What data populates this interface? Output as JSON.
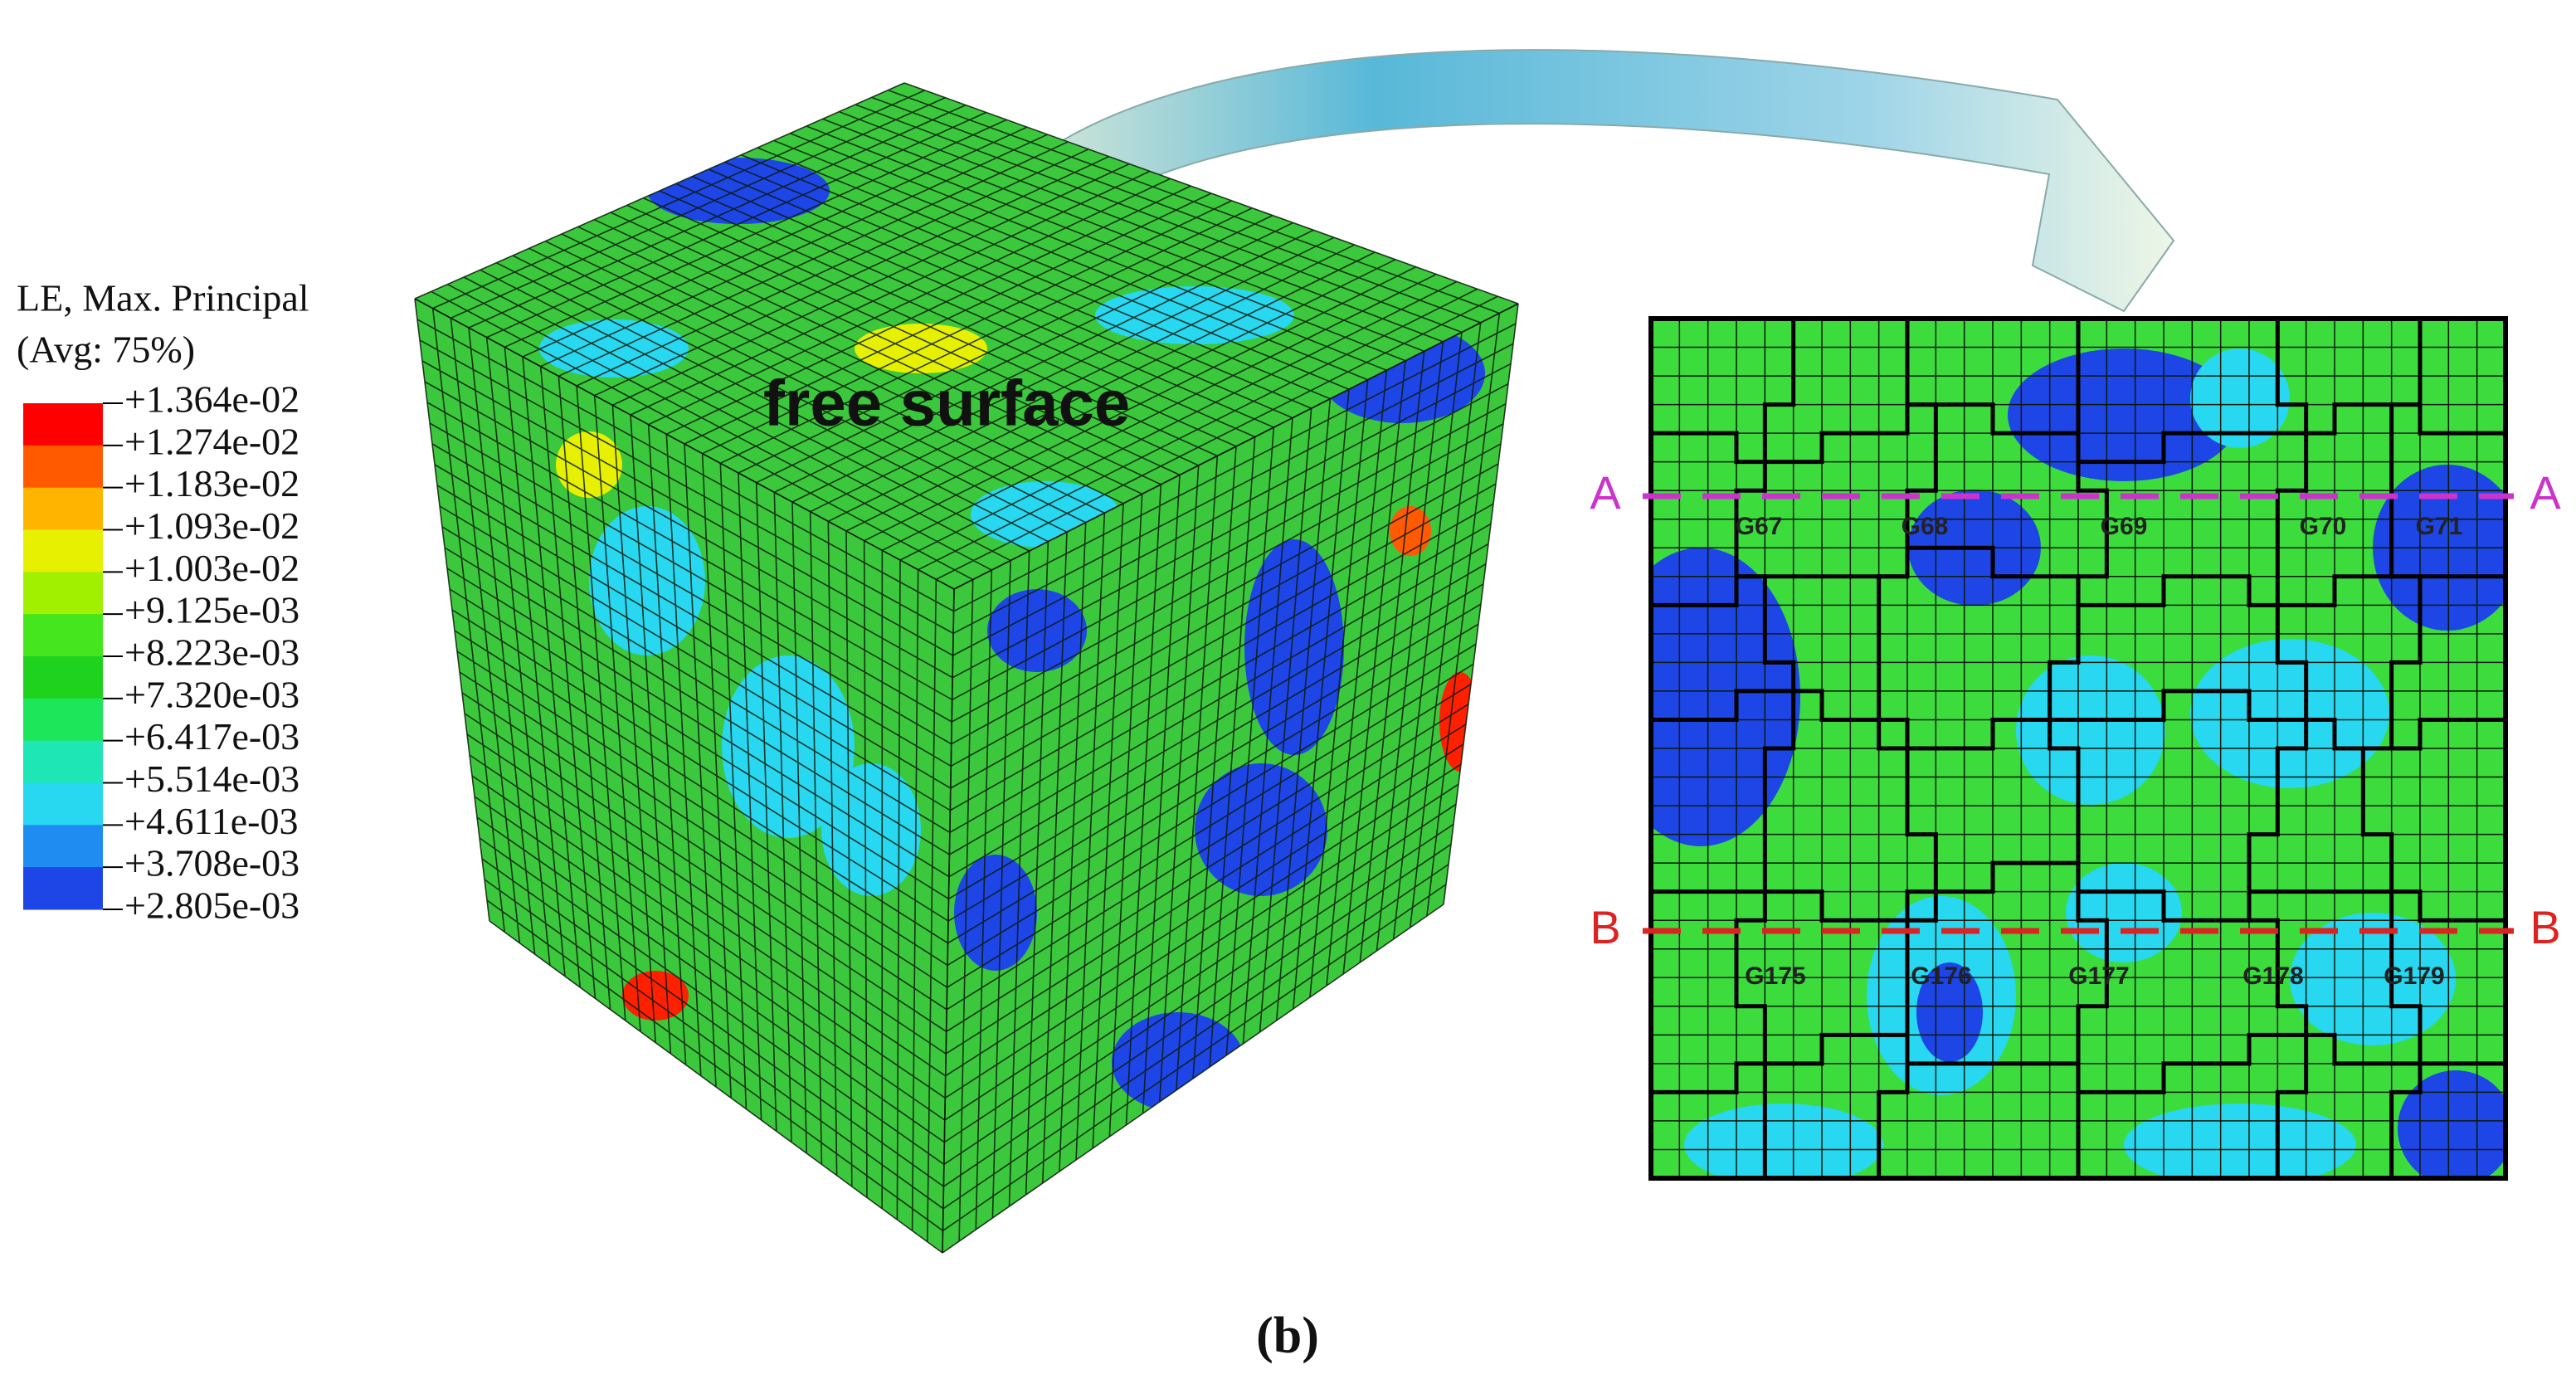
{
  "legend": {
    "title": "LE, Max. Principal",
    "subtitle": "(Avg: 75%)",
    "labels": [
      "+1.364e-02",
      "+1.274e-02",
      "+1.183e-02",
      "+1.093e-02",
      "+1.003e-02",
      "+9.125e-03",
      "+8.223e-03",
      "+7.320e-03",
      "+6.417e-03",
      "+5.514e-03",
      "+4.611e-03",
      "+3.708e-03",
      "+2.805e-03"
    ],
    "colors": [
      "#ff0000",
      "#ff5a00",
      "#ffb400",
      "#e6f000",
      "#a0f000",
      "#46e61e",
      "#1ed21e",
      "#1ee65a",
      "#1ee6b4",
      "#28d7f0",
      "#1e8cf0",
      "#1e46e6",
      "#0a14dc"
    ]
  },
  "cube": {
    "annotation": "free surface"
  },
  "section": {
    "line_a": {
      "label_left": "A",
      "label_right": "A",
      "color": "#cc33cc"
    },
    "line_b": {
      "label_left": "B",
      "label_right": "B",
      "color": "#dd2222"
    },
    "grains_a": [
      "G67",
      "G68",
      "G69",
      "G70",
      "G71"
    ],
    "grains_b": [
      "G175",
      "G176",
      "G177",
      "G178",
      "G179"
    ]
  },
  "caption": "(b)"
}
